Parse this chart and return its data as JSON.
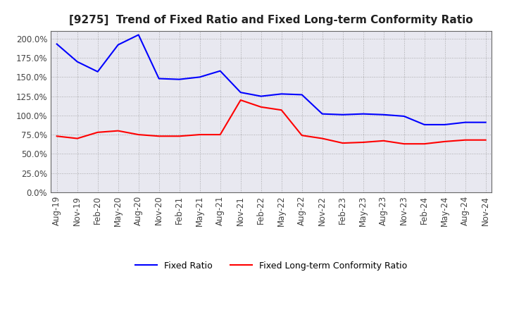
{
  "title": "[9275]  Trend of Fixed Ratio and Fixed Long-term Conformity Ratio",
  "x_labels": [
    "Aug-19",
    "Nov-19",
    "Feb-20",
    "May-20",
    "Aug-20",
    "Nov-20",
    "Feb-21",
    "May-21",
    "Aug-21",
    "Nov-21",
    "Feb-22",
    "May-22",
    "Aug-22",
    "Nov-22",
    "Feb-23",
    "May-23",
    "Aug-23",
    "Nov-23",
    "Feb-24",
    "May-24",
    "Aug-24",
    "Nov-24"
  ],
  "fixed_ratio": [
    193,
    170,
    157,
    192,
    205,
    148,
    147,
    150,
    158,
    130,
    125,
    128,
    127,
    102,
    101,
    102,
    101,
    99,
    88,
    88,
    91,
    91
  ],
  "fixed_lt_ratio": [
    73,
    70,
    78,
    80,
    75,
    73,
    73,
    75,
    75,
    120,
    111,
    107,
    74,
    70,
    64,
    65,
    67,
    63,
    63,
    66,
    68,
    68
  ],
  "ylim": [
    0,
    210
  ],
  "yticks": [
    0,
    25,
    50,
    75,
    100,
    125,
    150,
    175,
    200
  ],
  "line_color_fixed": "#0000FF",
  "line_color_lt": "#FF0000",
  "bg_color": "#FFFFFF",
  "plot_bg_color": "#E8E8F0",
  "grid_color": "#999999",
  "legend_fixed": "Fixed Ratio",
  "legend_lt": "Fixed Long-term Conformity Ratio",
  "title_fontsize": 11,
  "tick_fontsize": 8.5,
  "legend_fontsize": 9
}
